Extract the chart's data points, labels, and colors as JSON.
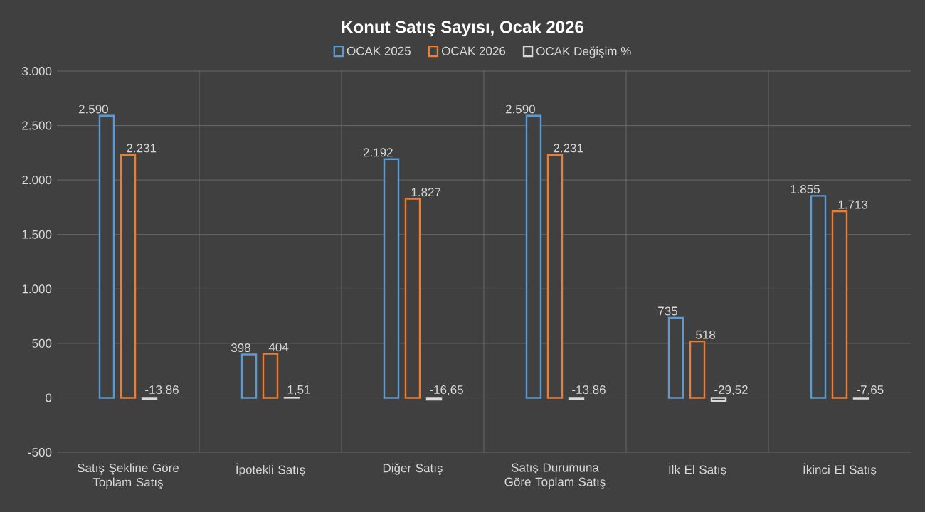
{
  "chart_data": {
    "type": "bar",
    "title": "Konut Satış Sayısı, Ocak 2026",
    "categories": [
      "Satış Şekline Göre Toplam Satış",
      "İpotekli Satış",
      "Diğer Satış",
      "Satış Durumuna Göre Toplam Satış",
      "İlk El Satış",
      "İkinci El Satış"
    ],
    "series": [
      {
        "name": "OCAK 2025",
        "color": "#5b9bd5",
        "values": [
          2590,
          398,
          2192,
          2590,
          735,
          1855
        ],
        "value_labels": [
          "2.590",
          "398",
          "2.192",
          "2.590",
          "735",
          "1.855"
        ]
      },
      {
        "name": "OCAK 2026",
        "color": "#ed7d31",
        "values": [
          2231,
          404,
          1827,
          2231,
          518,
          1713
        ],
        "value_labels": [
          "2.231",
          "404",
          "1.827",
          "2.231",
          "518",
          "1.713"
        ]
      },
      {
        "name": "OCAK Değişim %",
        "color": "#d9d9d9",
        "values": [
          -13.86,
          1.51,
          -16.65,
          -13.86,
          -29.52,
          -7.65
        ],
        "value_labels": [
          "-13,86",
          "1,51",
          "-16,65",
          "-13,86",
          "-29,52",
          "-7,65"
        ]
      }
    ],
    "ylim": [
      -500,
      3000
    ],
    "yticks": [
      {
        "value": -500,
        "label": "-500"
      },
      0,
      500,
      {
        "value": 1000,
        "label": "1.000"
      },
      {
        "value": 1500,
        "label": "1.500"
      },
      {
        "value": 2000,
        "label": "2.000"
      },
      {
        "value": 2500,
        "label": "2.500"
      },
      {
        "value": 3000,
        "label": "3.000"
      }
    ],
    "grid": true,
    "legend": "top"
  }
}
